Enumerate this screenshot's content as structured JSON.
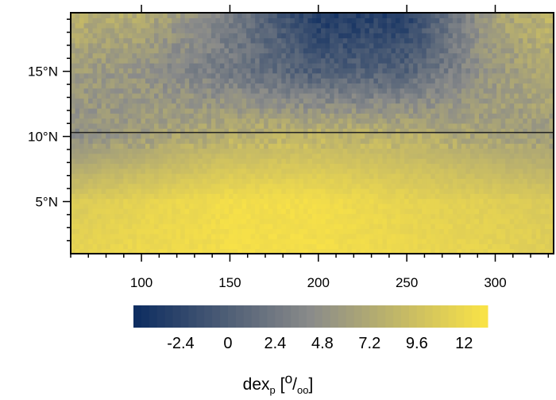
{
  "chart_data": {
    "type": "heatmap",
    "title": "",
    "xlabel": "",
    "ylabel": "",
    "xlim": [
      60,
      333
    ],
    "ylim": [
      1,
      19.5
    ],
    "x_ticks": [
      100,
      150,
      200,
      250,
      300
    ],
    "x_tick_labels": [
      "100",
      "150",
      "200",
      "250",
      "300"
    ],
    "y_ticks": [
      5,
      10,
      15
    ],
    "y_tick_labels": [
      "5°N",
      "10°N",
      "15°N"
    ],
    "reference_line_y": 10.3,
    "colorbar": {
      "title_main": "dex",
      "title_sub": "p",
      "title_unit_open": " [",
      "title_unit_sup": "o",
      "title_unit_slash": "/",
      "title_unit_sub": "oo",
      "title_unit_close": "]",
      "ticks": [
        -2.4,
        0,
        2.4,
        4.8,
        7.2,
        9.6,
        12
      ],
      "tick_labels": [
        "-2.4",
        "0",
        "2.4",
        "4.8",
        "7.2",
        "9.6",
        "12"
      ],
      "range": [
        -4.8,
        13.2
      ],
      "colors": [
        "#0c2c60",
        "#8a8b8a",
        "#fbe445"
      ]
    },
    "field_description_values": {
      "x": [
        60,
        100,
        150,
        200,
        250,
        300,
        333
      ],
      "y": [
        1,
        5,
        10,
        15,
        19.5
      ],
      "z": [
        [
          11.5,
          12.0,
          12.5,
          12.5,
          12.0,
          11.5,
          11.0
        ],
        [
          10.5,
          11.5,
          12.5,
          12.5,
          11.5,
          11.0,
          10.5
        ],
        [
          4.5,
          6.0,
          8.0,
          8.5,
          8.0,
          6.5,
          6.0
        ],
        [
          6.0,
          5.0,
          2.5,
          0.0,
          0.5,
          5.5,
          7.0
        ],
        [
          8.0,
          7.5,
          3.0,
          -3.5,
          -3.0,
          6.5,
          8.5
        ]
      ]
    }
  }
}
